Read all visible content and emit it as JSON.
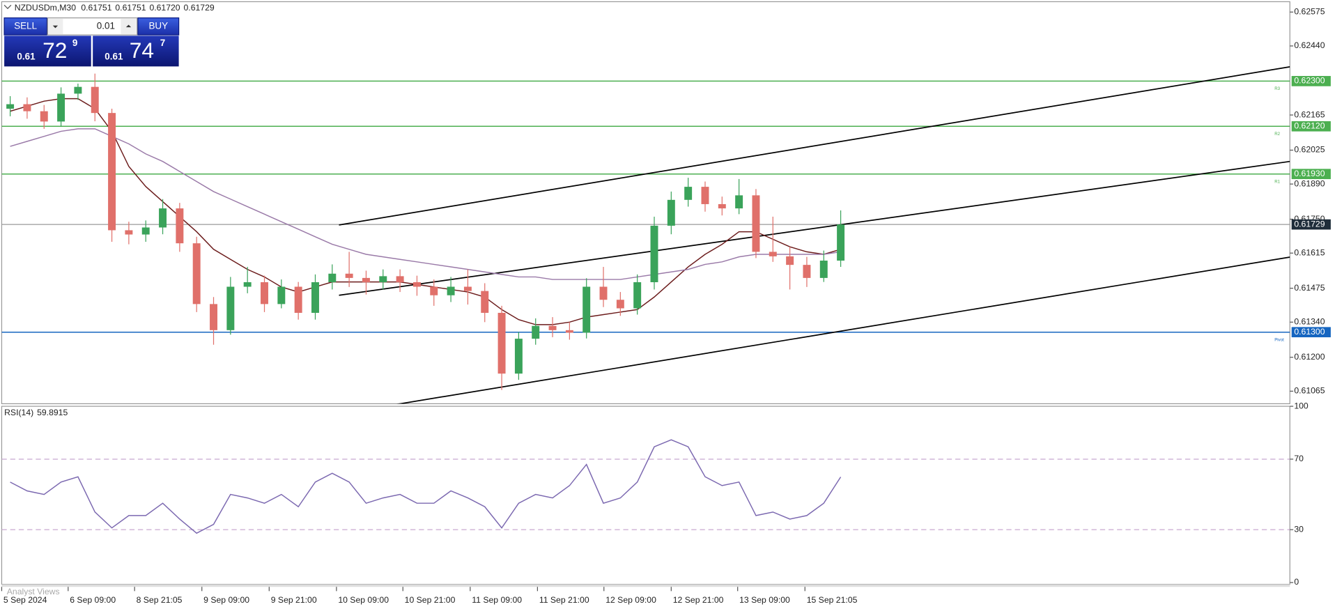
{
  "header": {
    "symbol": "NZDUSDm,M30",
    "ohlc": [
      "0.61751",
      "0.61751",
      "0.61720",
      "0.61729"
    ]
  },
  "trade_panel": {
    "sell": "SELL",
    "buy": "BUY",
    "lot": "0.01",
    "bid": {
      "big": "0.61",
      "main": "72",
      "small": "9"
    },
    "ask": {
      "big": "0.61",
      "main": "74",
      "small": "7"
    }
  },
  "footer_tab": "Analyst Views",
  "chart_data": [
    {
      "type": "candlestick",
      "x": [
        0,
        1,
        2,
        3,
        4,
        5,
        6,
        7,
        8,
        9,
        10,
        11,
        12,
        13,
        14,
        15,
        16,
        17,
        18,
        19,
        20,
        21,
        22,
        23,
        24,
        25,
        26,
        27,
        28,
        29,
        30,
        31,
        32,
        33,
        34,
        35,
        36,
        37,
        38,
        39,
        40,
        41,
        42,
        43,
        44,
        45,
        46,
        47,
        48,
        49
      ],
      "open": [
        0.6219,
        0.62208,
        0.6218,
        0.62139,
        0.6225,
        0.62277,
        0.62173,
        0.61706,
        0.61689,
        0.61717,
        0.61793,
        0.61654,
        0.61412,
        0.61308,
        0.61481,
        0.61499,
        0.61412,
        0.61481,
        0.61377,
        0.61499,
        0.61533,
        0.61516,
        0.61499,
        0.61523,
        0.61499,
        0.61481,
        0.61447,
        0.61481,
        0.61464,
        0.61377,
        0.61135,
        0.61274,
        0.61325,
        0.61308,
        0.61298,
        0.61481,
        0.61429,
        0.61395,
        0.61499,
        0.61724,
        0.61827,
        0.61879,
        0.6181,
        0.61793,
        0.61845,
        0.6162,
        0.61602,
        0.61568,
        0.61516,
        0.61585
      ],
      "high": [
        0.6224,
        0.62235,
        0.62205,
        0.62275,
        0.6229,
        0.6233,
        0.6219,
        0.6174,
        0.61745,
        0.6183,
        0.61815,
        0.6168,
        0.6144,
        0.6152,
        0.6156,
        0.61525,
        0.6151,
        0.615,
        0.6153,
        0.6157,
        0.6162,
        0.61545,
        0.6155,
        0.6155,
        0.61525,
        0.6151,
        0.6152,
        0.6155,
        0.61495,
        0.61405,
        0.613,
        0.61355,
        0.6136,
        0.6134,
        0.61515,
        0.6156,
        0.6146,
        0.6153,
        0.6176,
        0.6186,
        0.61915,
        0.619,
        0.6184,
        0.6191,
        0.6187,
        0.6176,
        0.6164,
        0.616,
        0.61625,
        0.61785
      ],
      "low": [
        0.6216,
        0.6215,
        0.6211,
        0.6212,
        0.62225,
        0.6214,
        0.6166,
        0.6165,
        0.6166,
        0.6169,
        0.6162,
        0.6138,
        0.6125,
        0.6129,
        0.61455,
        0.6138,
        0.61395,
        0.6135,
        0.6135,
        0.6147,
        0.6148,
        0.6145,
        0.6147,
        0.6146,
        0.61445,
        0.61405,
        0.6142,
        0.6141,
        0.6134,
        0.6107,
        0.6111,
        0.6125,
        0.6128,
        0.6127,
        0.61275,
        0.614,
        0.61365,
        0.6137,
        0.6147,
        0.6169,
        0.618,
        0.6178,
        0.61765,
        0.6177,
        0.61595,
        0.6158,
        0.6147,
        0.6148,
        0.615,
        0.6156
      ],
      "close": [
        0.62208,
        0.6218,
        0.62139,
        0.6225,
        0.62277,
        0.62173,
        0.61706,
        0.61689,
        0.61717,
        0.61793,
        0.61654,
        0.61412,
        0.61308,
        0.61481,
        0.61499,
        0.61412,
        0.61481,
        0.61377,
        0.61499,
        0.61533,
        0.61516,
        0.61499,
        0.61523,
        0.61499,
        0.61481,
        0.61447,
        0.61481,
        0.61464,
        0.61377,
        0.61135,
        0.61274,
        0.61325,
        0.61308,
        0.61298,
        0.61481,
        0.61429,
        0.61395,
        0.61499,
        0.61724,
        0.61827,
        0.61879,
        0.6181,
        0.61793,
        0.61845,
        0.6162,
        0.61602,
        0.61568,
        0.61516,
        0.61585,
        0.61729
      ],
      "up_color": "#3aa35a",
      "down_color": "#e0706a",
      "series": [
        {
          "color": "#6b1b1b",
          "values": [
            0.6218,
            0.622,
            0.6222,
            0.6223,
            0.6223,
            0.6219,
            0.621,
            0.6196,
            0.6188,
            0.6182,
            0.6176,
            0.617,
            0.6163,
            0.6159,
            0.6155,
            0.6152,
            0.6148,
            0.6146,
            0.6148,
            0.615,
            0.615,
            0.615,
            0.615,
            0.615,
            0.6149,
            0.6148,
            0.6147,
            0.6146,
            0.6144,
            0.6139,
            0.6135,
            0.6133,
            0.6133,
            0.6134,
            0.6136,
            0.6137,
            0.6138,
            0.6139,
            0.6144,
            0.615,
            0.6156,
            0.6161,
            0.6165,
            0.617,
            0.617,
            0.6167,
            0.6164,
            0.6162,
            0.6161,
            0.6163
          ]
        },
        {
          "color": "#9a7aa8",
          "values": [
            0.6204,
            0.6206,
            0.6208,
            0.621,
            0.6211,
            0.6211,
            0.6208,
            0.6205,
            0.6201,
            0.6198,
            0.6194,
            0.619,
            0.6186,
            0.6183,
            0.618,
            0.6177,
            0.6174,
            0.6171,
            0.6168,
            0.6165,
            0.6163,
            0.6161,
            0.616,
            0.6159,
            0.6158,
            0.6157,
            0.6156,
            0.6155,
            0.6154,
            0.6153,
            0.6152,
            0.6152,
            0.6151,
            0.6151,
            0.6151,
            0.6151,
            0.6151,
            0.6152,
            0.6153,
            0.6154,
            0.6155,
            0.6157,
            0.6158,
            0.616,
            0.6161,
            0.6161,
            0.6161,
            0.6161,
            0.6161,
            0.6162
          ]
        }
      ],
      "trendline_color": "#000000",
      "trendlines": [
        {
          "x": [
            19.4,
            75.5
          ],
          "y": [
            0.61727,
            0.62357
          ]
        },
        {
          "x": [
            19.4,
            75.5
          ],
          "y": [
            0.61447,
            0.6198
          ]
        },
        {
          "x": [
            20.15,
            75.5
          ],
          "y": [
            0.60983,
            0.61599
          ]
        }
      ],
      "levels": [
        {
          "name": "R3",
          "value": 0.623,
          "label": "0.62300",
          "color": "#4caf50"
        },
        {
          "name": "R2",
          "value": 0.6212,
          "label": "0.62120",
          "color": "#4caf50"
        },
        {
          "name": "R1",
          "value": 0.6193,
          "label": "0.61930",
          "color": "#4caf50"
        },
        {
          "name": "Pivot",
          "value": 0.613,
          "label": "0.61300",
          "color": "#1565c0"
        }
      ],
      "current": {
        "value": 0.61729,
        "label": "0.61729",
        "color": "#1f2d3a"
      },
      "xlim": [
        -0.5,
        75.5
      ],
      "ylim": [
        0.61015,
        0.62623
      ],
      "yticks": [
        {
          "value": 0.62575,
          "label": "0.62575"
        },
        {
          "value": 0.6244,
          "label": "0.62440"
        },
        {
          "value": 0.62165,
          "label": "0.62165"
        },
        {
          "value": 0.62025,
          "label": "0.62025"
        },
        {
          "value": 0.6189,
          "label": "0.61890"
        },
        {
          "value": 0.6175,
          "label": "0.61750"
        },
        {
          "value": 0.61615,
          "label": "0.61615"
        },
        {
          "value": 0.61475,
          "label": "0.61475"
        },
        {
          "value": 0.6134,
          "label": "0.61340"
        },
        {
          "value": 0.612,
          "label": "0.61200"
        },
        {
          "value": 0.61065,
          "label": "0.61065"
        }
      ]
    },
    {
      "type": "line",
      "x": [
        0,
        1,
        2,
        3,
        4,
        5,
        6,
        7,
        8,
        9,
        10,
        11,
        12,
        13,
        14,
        15,
        16,
        17,
        18,
        19,
        20,
        21,
        22,
        23,
        24,
        25,
        26,
        27,
        28,
        29,
        30,
        31,
        32,
        33,
        34,
        35,
        36,
        37,
        38,
        39,
        40,
        41,
        42,
        43,
        44,
        45,
        46,
        47,
        48,
        49
      ],
      "series": [
        {
          "name": "RSI(14)",
          "color": "#7b68b0",
          "values": [
            57,
            52,
            50,
            57,
            60,
            40,
            31,
            38,
            38,
            45,
            36,
            28,
            33,
            50,
            48,
            45,
            50,
            43,
            57,
            62,
            57,
            45,
            48,
            50,
            45,
            45,
            52,
            48,
            43,
            31,
            45,
            50,
            48,
            55,
            67,
            45,
            48,
            57,
            77,
            81,
            77,
            60,
            55,
            57,
            38,
            40,
            36,
            38,
            45,
            59.8915
          ]
        }
      ],
      "dashed_levels": [
        70,
        30
      ],
      "xlim": [
        -0.5,
        75.5
      ],
      "ylim": [
        -1,
        100
      ],
      "yticks": [
        100,
        70,
        30,
        0
      ],
      "xticks": [
        {
          "value": -0.5,
          "label": "5 Sep 2024"
        },
        {
          "value": 3.42,
          "label": "6 Sep 09:00"
        },
        {
          "value": 7.34,
          "label": "8 Sep 21:05"
        },
        {
          "value": 11.31,
          "label": "9 Sep 09:00"
        },
        {
          "value": 15.28,
          "label": "9 Sep 21:00"
        },
        {
          "value": 19.25,
          "label": "10 Sep 09:00"
        },
        {
          "value": 23.17,
          "label": "10 Sep 21:00"
        },
        {
          "value": 27.14,
          "label": "11 Sep 09:00"
        },
        {
          "value": 31.11,
          "label": "11 Sep 21:00"
        },
        {
          "value": 35.03,
          "label": "12 Sep 09:00"
        },
        {
          "value": 39,
          "label": "12 Sep 21:00"
        },
        {
          "value": 42.92,
          "label": "13 Sep 09:00"
        },
        {
          "value": 46.89,
          "label": "15 Sep 21:05"
        }
      ]
    }
  ]
}
